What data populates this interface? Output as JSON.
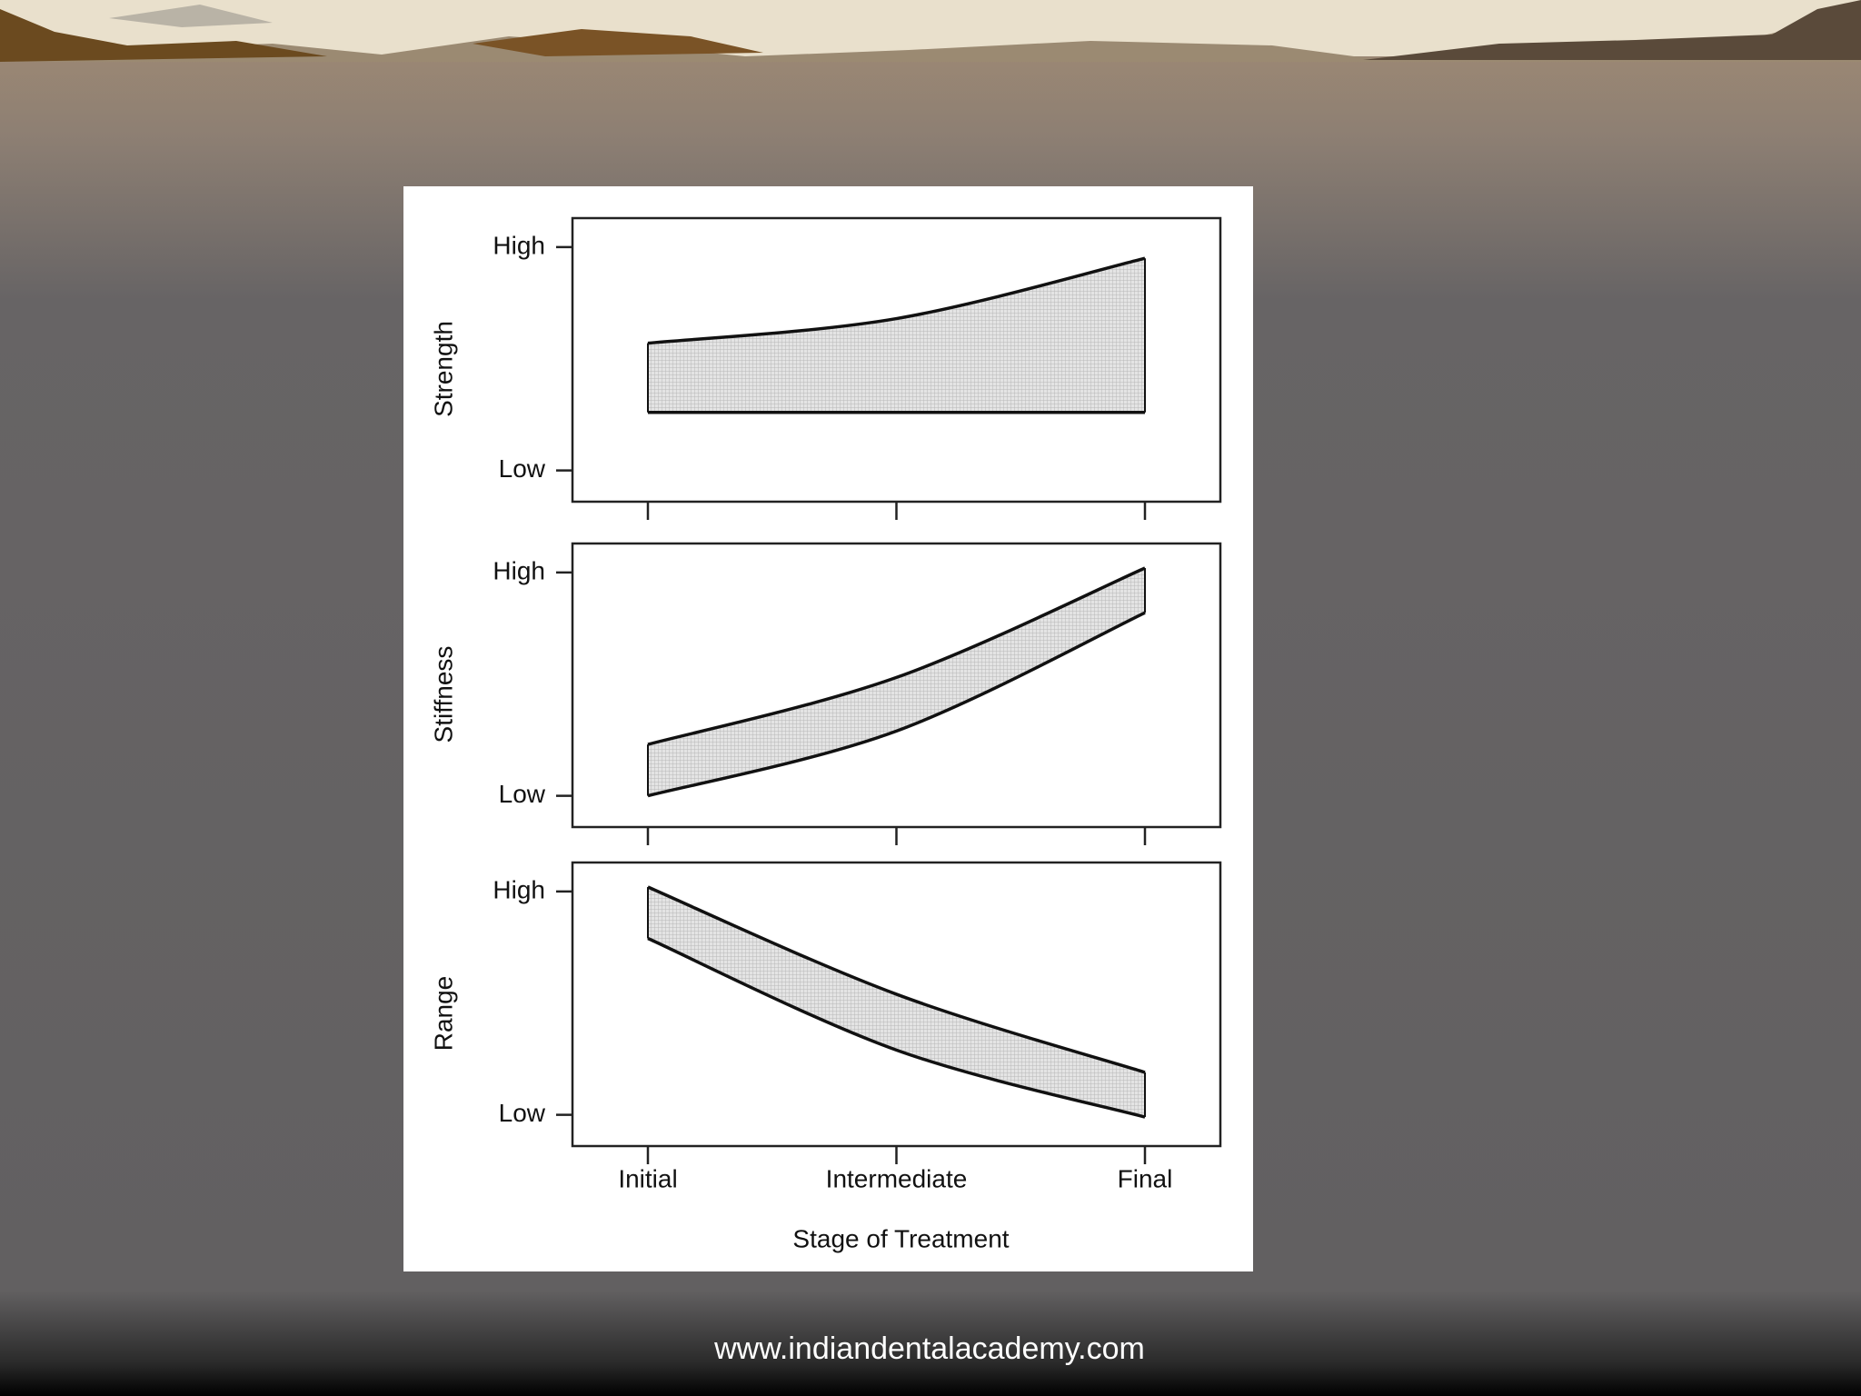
{
  "chart_data": [
    {
      "type": "band",
      "ylabel": "Strength",
      "ylim": [
        -0.14,
        1.13
      ],
      "yticks": [
        {
          "value": 1,
          "label": "High"
        },
        {
          "value": 0,
          "label": "Low"
        }
      ],
      "series": [
        {
          "color": "#111111",
          "values": [
            0.57,
            0.68,
            0.95
          ]
        },
        {
          "color": "#111111",
          "values": [
            0.26,
            0.26,
            0.26
          ]
        }
      ]
    },
    {
      "type": "band",
      "ylabel": "Stiffness",
      "ylim": [
        -0.14,
        1.13
      ],
      "yticks": [
        {
          "value": 1,
          "label": "High"
        },
        {
          "value": 0,
          "label": "Low"
        }
      ],
      "series": [
        {
          "color": "#111111",
          "values": [
            0.23,
            0.53,
            1.02
          ]
        },
        {
          "color": "#111111",
          "values": [
            0,
            0.29,
            0.82
          ]
        }
      ]
    },
    {
      "type": "band",
      "ylabel": "Range",
      "xlabel": "Stage of Treatment",
      "ylim": [
        -0.14,
        1.13
      ],
      "yticks": [
        {
          "value": 1,
          "label": "High"
        },
        {
          "value": 0,
          "label": "Low"
        }
      ],
      "categories": [
        "Initial",
        "Intermediate",
        "Final"
      ],
      "series": [
        {
          "color": "#111111",
          "values": [
            1.02,
            0.54,
            0.19
          ]
        },
        {
          "color": "#111111",
          "values": [
            0.79,
            0.29,
            -0.01
          ]
        }
      ]
    }
  ],
  "footer": "www.indiandentalacademy.com"
}
